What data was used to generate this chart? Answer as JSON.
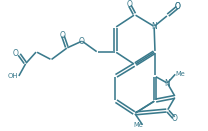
{
  "bg": "#ffffff",
  "lc": "#3a7a8c",
  "lw": 1.15,
  "figsize": [
    2.08,
    1.31
  ],
  "dpi": 100,
  "xlim": [
    0,
    10
  ],
  "ylim": [
    0,
    7
  ]
}
